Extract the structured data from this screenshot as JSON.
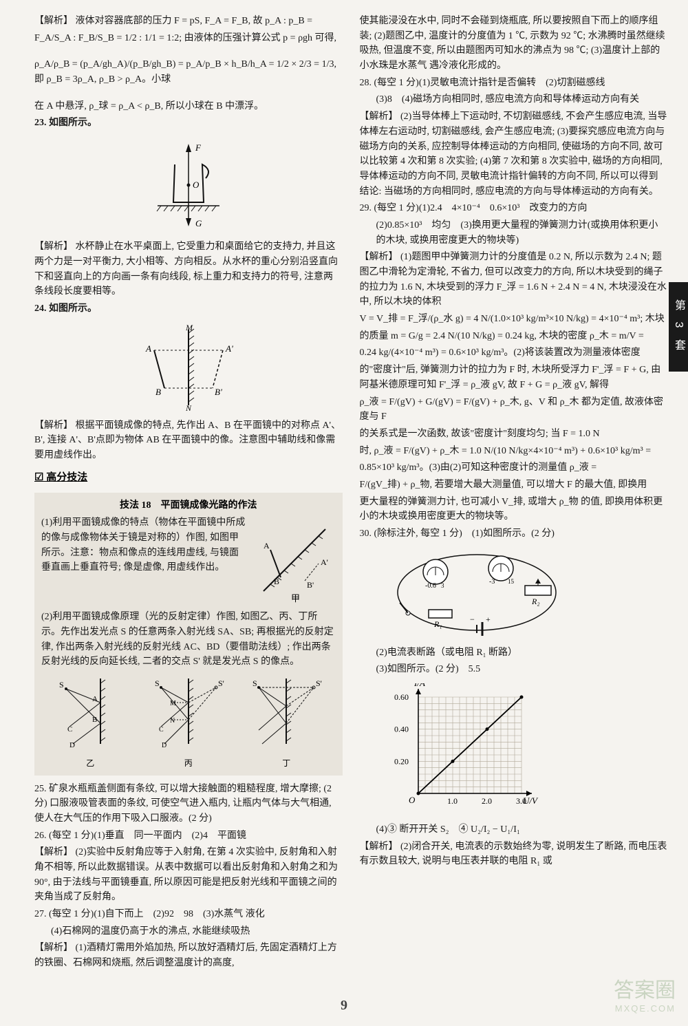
{
  "tab": "第 3 套",
  "page_number": "9",
  "watermark": {
    "logo": "答案圈",
    "url": "MXQE.COM"
  },
  "left": {
    "explain_22_lead": "【解析】 液体对容器底部的压力 F = pS, F_A = F_B, 故 p_A : p_B =",
    "formula1": "F_A/S_A : F_B/S_B = 1/2 : 1/1 = 1:2; 由液体的压强计算公式 p = ρgh 可得,",
    "formula2": "ρ_A/ρ_B = (p_A/gh_A)/(p_B/gh_B) = p_A/p_B × h_B/h_A = 1/2 × 2/3 = 1/3, 即 ρ_B = 3ρ_A, ρ_B > ρ_A。小球",
    "formula_tail": "在 A 中悬浮, ρ_球 = ρ_A < ρ_B, 所以小球在 B 中漂浮。",
    "q23": "23. 如图所示。",
    "q23_explain": "【解析】 水杯静止在水平桌面上, 它受重力和桌面给它的支持力, 并且这两个力是一对平衡力, 大小相等、方向相反。从水杯的重心分别沿竖直向下和竖直向上的方向画一条有向线段, 标上重力和支持力的符号, 注意两条线段长度要相等。",
    "q24": "24. 如图所示。",
    "q24_explain": "【解析】 根据平面镜成像的特点, 先作出 A、B 在平面镜中的对称点 A'、B', 连接 A'、B'点即为物体 AB 在平面镜中的像。注意图中辅助线和像需要用虚线作出。",
    "section": "☑ 高分技法",
    "tech_title": "技法 18　平面镜成像光路的作法",
    "tech_p1": "(1)利用平面镜成像的特点（物体在平面镜中所成的像与成像物体关于镜是对称的）作图, 如图甲所示。注意：物点和像点的连线用虚线, 与镜面垂直画上垂直符号; 像是虚像, 用虚线作出。",
    "tech_p2": "(2)利用平面镜成像原理（光的反射定律）作图, 如图乙、丙、丁所示。先作出发光点 S 的任意两条入射光线 SA、SB; 再根据光的反射定律, 作出两条入射光线的反射光线 AC、BD（要借助法线）; 作出两条反射光线的反向延长线, 二者的交点 S' 就是发光点 S 的像点。",
    "sub_yi": "乙",
    "sub_bing": "丙",
    "sub_ding": "丁",
    "q25": "25. 矿泉水瓶瓶盖侧面有条纹, 可以增大接触面的粗糙程度, 增大摩擦; (2 分) 口服液吸管表面的条纹, 可使空气进入瓶内, 让瓶内气体与大气相通, 使人在大气压的作用下吸入口服液。(2 分)",
    "q26": "26. (每空 1 分)(1)垂直　同一平面内　(2)4　平面镜",
    "q26_explain": "【解析】 (2)实验中反射角应等于入射角, 在第 4 次实验中, 反射角和入射角不相等, 所以此数据错误。从表中数据可以看出反射角和入射角之和为 90°, 由于法线与平面镜垂直, 所以原因可能是把反射光线和平面镜之间的夹角当成了反射角。",
    "q27": "27. (每空 1 分)(1)自下而上　(2)92　98　(3)水蒸气 液化",
    "q27_sub4": "(4)石棉网的温度仍高于水的沸点, 水能继续吸热",
    "q27_explain": "【解析】 (1)酒精灯需用外焰加热, 所以放好酒精灯后, 先固定酒精灯上方的铁圈、石棉网和烧瓶, 然后调整温度计的高度,"
  },
  "right": {
    "q27_cont": "使其能浸没在水中, 同时不会碰到烧瓶底, 所以要按照自下而上的顺序组装; (2)题图乙中, 温度计的分度值为 1 ℃, 示数为 92 ℃; 水沸腾时虽然继续吸热, 但温度不变, 所以由题图丙可知水的沸点为 98 ℃; (3)温度计上部的小水珠是水蒸气 遇冷液化形成的。",
    "q28": "28. (每空 1 分)(1)灵敏电流计指针是否偏转　(2)切割磁感线",
    "q28_sub": "(3)8　(4)磁场方向相同时, 感应电流方向和导体棒运动方向有关",
    "q28_explain": "【解析】 (2)当导体棒上下运动时, 不切割磁感线, 不会产生感应电流, 当导体棒左右运动时, 切割磁感线, 会产生感应电流; (3)要探究感应电流方向与磁场方向的关系, 应控制导体棒运动的方向相同, 使磁场的方向不同, 故可以比较第 4 次和第 8 次实验; (4)第 7 次和第 8 次实验中, 磁场的方向相同, 导体棒运动的方向不同, 灵敏电流计指针偏转的方向不同, 所以可以得到结论: 当磁场的方向相同时, 感应电流的方向与导体棒运动的方向有关。",
    "q29": "29. (每空 1 分)(1)2.4　4×10⁻⁴　0.6×10³　改变力的方向",
    "q29_sub2": "(2)0.85×10³　均匀　(3)换用更大量程的弹簧测力计(或换用体积更小的木块, 或换用密度更大的物块等)",
    "q29_explain1": "【解析】 (1)题图甲中弹簧测力计的分度值是 0.2 N, 所以示数为 2.4 N; 题图乙中滑轮为定滑轮, 不省力, 但可以改变力的方向, 所以木块受到的绳子的拉力为 1.6 N, 木块受到的浮力 F_浮 = 1.6 N + 2.4 N = 4 N, 木块浸没在水中, 所以木块的体积",
    "q29_formula1": "V = V_排 = F_浮/(ρ_水 g) = 4 N/(1.0×10³ kg/m³×10 N/kg) = 4×10⁻⁴ m³; 木块",
    "q29_formula2": "的质量 m = G/g = 2.4 N/(10 N/kg) = 0.24 kg, 木块的密度 ρ_木 = m/V =",
    "q29_formula3": "0.24 kg/(4×10⁻⁴ m³) = 0.6×10³ kg/m³。(2)将该装置改为测量液体密度",
    "q29_explain2": "的\"密度计\"后, 弹簧测力计的拉力为 F 时, 木块所受浮力 F'_浮 = F + G, 由阿基米德原理可知 F'_浮 = ρ_液 gV, 故 F + G = ρ_液 gV, 解得",
    "q29_formula4": "ρ_液 = F/(gV) + G/(gV) = F/(gV) + ρ_木, g、V 和 ρ_木 都为定值, 故液体密度与 F",
    "q29_explain3": "的关系式是一次函数, 故该\"密度计\"刻度均匀; 当 F = 1.0 N",
    "q29_formula5": "时, ρ_液 = F/(gV) + ρ_木 = 1.0 N/(10 N/kg×4×10⁻⁴ m³) + 0.6×10³ kg/m³ =",
    "q29_formula6": "0.85×10³ kg/m³。(3)由(2)可知这种密度计的测量值 ρ_液 =",
    "q29_formula7": "F/(gV_排) + ρ_物, 若要增大最大测量值, 可以增大 F 的最大值, 即换用",
    "q29_explain4": "更大量程的弹簧测力计, 也可减小 V_排, 或增大 ρ_物 的值, 即换用体积更小的木块或换用密度更大的物块等。",
    "q30": "30. (除标注外, 每空 1 分)　(1)如图所示。(2 分)",
    "q30_sub2": "(2)电流表断路（或电阻 R₁ 断路）",
    "q30_sub3": "(3)如图所示。(2 分)　5.5",
    "q30_sub4": "(4)③ 断开开关 S₂　④ U₂/I₂ − U₁/I₁",
    "q30_explain": "【解析】 (2)闭合开关, 电流表的示数始终为零, 说明发生了断路, 而电压表有示数且较大, 说明与电压表并联的电阻 R₁ 或",
    "graph": {
      "type": "line",
      "xlabel": "U/V",
      "ylabel": "I/A",
      "xlim": [
        0,
        3.0
      ],
      "ylim": [
        0,
        0.6
      ],
      "xticks": [
        1.0,
        2.0,
        3.0
      ],
      "yticks": [
        0.2,
        0.4,
        0.6
      ],
      "grid_n": 15,
      "data_x": [
        0,
        1.0,
        2.0,
        3.0
      ],
      "data_y": [
        0,
        0.2,
        0.4,
        0.6
      ],
      "bg": "#ffffff",
      "grid_color": "#b0a898",
      "line_color": "#000000"
    }
  }
}
